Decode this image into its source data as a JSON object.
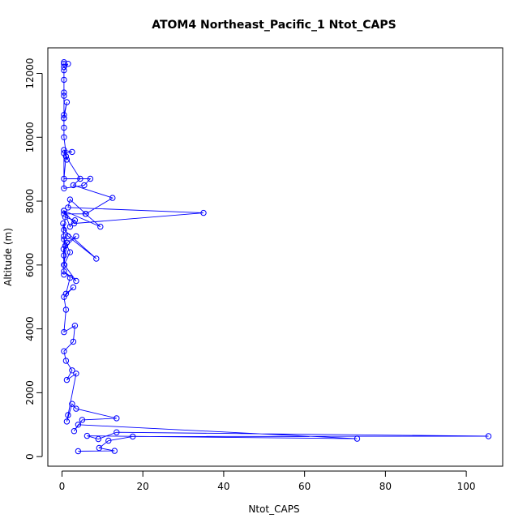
{
  "chart_data": {
    "type": "line",
    "title": "ATOM4 Northeast_Pacific_1 Ntot_CAPS",
    "xlabel": "Ntot_CAPS",
    "ylabel": "Altitude (m)",
    "xlim": [
      -3.5,
      109
    ],
    "ylim": [
      -300,
      12800
    ],
    "x_ticks": [
      0,
      20,
      40,
      60,
      80,
      100
    ],
    "y_ticks": [
      0,
      2000,
      4000,
      6000,
      8000,
      10000,
      12000
    ],
    "x_tick_labels": [
      "0",
      "20",
      "40",
      "60",
      "80",
      "100"
    ],
    "y_tick_labels": [
      "0",
      "2000",
      "4000",
      "6000",
      "8000",
      "10000",
      "12000"
    ],
    "grid": false,
    "legend": "none",
    "marker": "open-circle",
    "series_color": "#0000ff",
    "series": [
      {
        "x": [
          4.0,
          13.0,
          9.2,
          11.5,
          17.5,
          105.5,
          13.5,
          9.0,
          6.2,
          73.0,
          4.0,
          3.0,
          5.0,
          13.5,
          3.5,
          2.5,
          1.2,
          1.5,
          3.5,
          1.2,
          2.5,
          1.0,
          0.5,
          2.8,
          3.2,
          0.5,
          1.0,
          0.5,
          2.8,
          1.0,
          2.0,
          0.5,
          3.5,
          0.6,
          0.5,
          0.8,
          0.5,
          0.5,
          0.4,
          3.5,
          1.2,
          0.5,
          2.0,
          0.5,
          0.3,
          1.5,
          8.5,
          0.5,
          0.8,
          3.2,
          2.0,
          0.5,
          9.5,
          5.8,
          0.5,
          0.5,
          3.0,
          35.0,
          1.5,
          2.0,
          5.9,
          12.5,
          2.8,
          4.5,
          1.0,
          0.5,
          7.0,
          5.5,
          0.5,
          0.5,
          2.5,
          0.5,
          1.2,
          0.5,
          0.5,
          0.5,
          0.5,
          1.2,
          0.5,
          0.5,
          0.5,
          0.5,
          0.5,
          1.5,
          0.5,
          0.5,
          0.5
        ],
        "y": [
          170,
          180,
          270,
          500,
          630,
          640,
          760,
          550,
          650,
          560,
          1000,
          800,
          1150,
          1200,
          1500,
          1650,
          1100,
          1300,
          2600,
          2400,
          2700,
          3000,
          3300,
          3600,
          4100,
          3900,
          4600,
          5000,
          5300,
          5100,
          5600,
          5800,
          5500,
          6000,
          6300,
          6600,
          6900,
          5700,
          6500,
          6900,
          6700,
          6000,
          6400,
          6800,
          7300,
          6900,
          6200,
          7100,
          7500,
          7400,
          7200,
          7700,
          7200,
          7600,
          7600,
          7700,
          7300,
          7630,
          7800,
          8050,
          7600,
          8100,
          8500,
          8700,
          9400,
          8700,
          8700,
          8500,
          8400,
          9500,
          9540,
          9600,
          9300,
          10000,
          10300,
          10600,
          10700,
          11100,
          10600,
          11300,
          11400,
          11800,
          12100,
          12300,
          12200,
          12300,
          12350
        ]
      }
    ]
  }
}
